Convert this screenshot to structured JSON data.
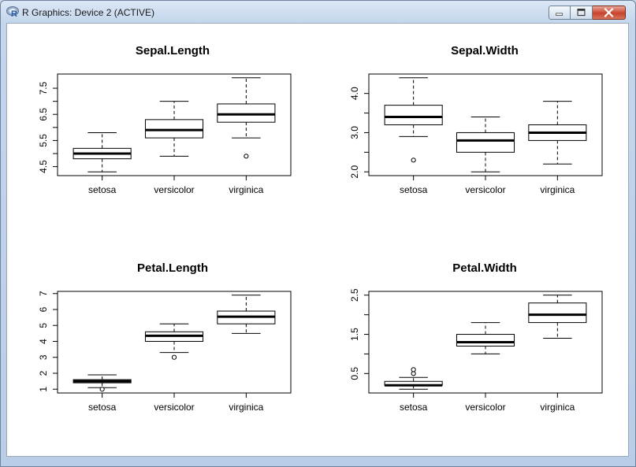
{
  "window": {
    "title": "R Graphics: Device 2 (ACTIVE)",
    "icon": "r-logo-icon",
    "controls": [
      "minimize-icon",
      "maximize-icon",
      "close-icon"
    ]
  },
  "chart_data": [
    {
      "type": "box",
      "title": "Sepal.Length",
      "categories": [
        "setosa",
        "versicolor",
        "virginica"
      ],
      "ylim": [
        4.3,
        7.9
      ],
      "yticks": [
        "4.5",
        "5.5",
        "6.5",
        "7.5"
      ],
      "boxes": [
        {
          "min": 4.3,
          "q1": 4.8,
          "median": 5.0,
          "q3": 5.2,
          "max": 5.8,
          "outliers": []
        },
        {
          "min": 4.9,
          "q1": 5.6,
          "median": 5.9,
          "q3": 6.3,
          "max": 7.0,
          "outliers": []
        },
        {
          "min": 5.6,
          "q1": 6.2,
          "median": 6.5,
          "q3": 6.9,
          "max": 7.9,
          "outliers": [
            4.9
          ]
        }
      ]
    },
    {
      "type": "box",
      "title": "Sepal.Width",
      "categories": [
        "setosa",
        "versicolor",
        "virginica"
      ],
      "ylim": [
        2.0,
        4.4
      ],
      "yticks": [
        "2.0",
        "3.0",
        "4.0"
      ],
      "boxes": [
        {
          "min": 2.9,
          "q1": 3.2,
          "median": 3.4,
          "q3": 3.7,
          "max": 4.4,
          "outliers": [
            2.3
          ]
        },
        {
          "min": 2.0,
          "q1": 2.5,
          "median": 2.8,
          "q3": 3.0,
          "max": 3.4,
          "outliers": []
        },
        {
          "min": 2.2,
          "q1": 2.8,
          "median": 3.0,
          "q3": 3.2,
          "max": 3.8,
          "outliers": []
        }
      ]
    },
    {
      "type": "box",
      "title": "Petal.Length",
      "categories": [
        "setosa",
        "versicolor",
        "virginica"
      ],
      "ylim": [
        1.0,
        6.9
      ],
      "yticks": [
        "1",
        "2",
        "3",
        "4",
        "5",
        "6",
        "7"
      ],
      "boxes": [
        {
          "min": 1.1,
          "q1": 1.4,
          "median": 1.5,
          "q3": 1.6,
          "max": 1.9,
          "outliers": [
            1.0
          ]
        },
        {
          "min": 3.3,
          "q1": 4.0,
          "median": 4.35,
          "q3": 4.6,
          "max": 5.1,
          "outliers": [
            3.0
          ]
        },
        {
          "min": 4.5,
          "q1": 5.1,
          "median": 5.55,
          "q3": 5.9,
          "max": 6.9,
          "outliers": []
        }
      ]
    },
    {
      "type": "box",
      "title": "Petal.Width",
      "categories": [
        "setosa",
        "versicolor",
        "virginica"
      ],
      "ylim": [
        0.1,
        2.5
      ],
      "yticks": [
        "0.5",
        "1.5",
        "2.5"
      ],
      "boxes": [
        {
          "min": 0.1,
          "q1": 0.2,
          "median": 0.2,
          "q3": 0.3,
          "max": 0.4,
          "outliers": [
            0.5,
            0.6
          ]
        },
        {
          "min": 1.0,
          "q1": 1.2,
          "median": 1.3,
          "q3": 1.5,
          "max": 1.8,
          "outliers": []
        },
        {
          "min": 1.4,
          "q1": 1.8,
          "median": 2.0,
          "q3": 2.3,
          "max": 2.5,
          "outliers": []
        }
      ]
    }
  ]
}
